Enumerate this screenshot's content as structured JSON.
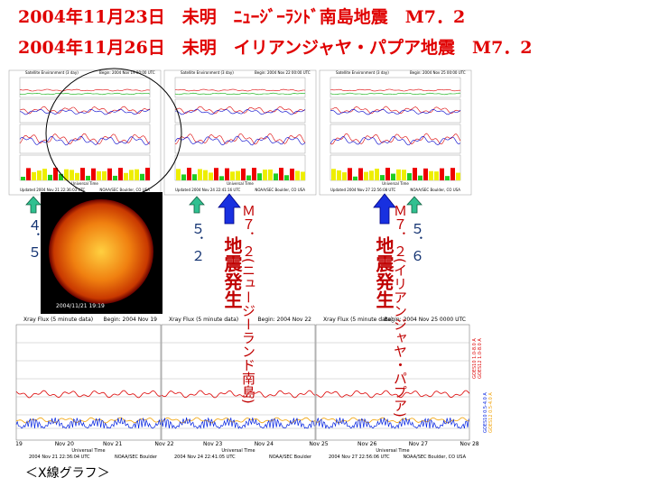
{
  "header": {
    "lines": [
      "2004年11月23日　未明　ﾆｭｰｼﾞｰﾗﾝﾄﾞ南島地震　M7．2",
      "2004年11月26日　未明　イリアンジャヤ・パプア地震　M7．2"
    ]
  },
  "satellite_panels": [
    {
      "title": "Satellite Environment (3 day)",
      "begin": "Begin: 2004 Nov 19 00:00 UTC",
      "x_label": "Universal Time",
      "updated": "Updated 2004 Nov 21 22:36:03 UTC",
      "source": "NOAA/SEC Boulder, CO USA"
    },
    {
      "title": "Satellite Environment (3 day)",
      "begin": "Begin: 2004 Nov 22 00:00 UTC",
      "x_label": "Universal Time",
      "updated": "Updated 2004 Nov 24 22:41:16 UTC",
      "source": "NOAA/SEC Boulder, CO USA"
    },
    {
      "title": "Satellite Environment (3 day)",
      "begin": "Begin: 2004 Nov 25 00:00 UTC",
      "x_label": "Universal Time",
      "updated": "Updated 2004 Nov 27 22:56:08 UTC",
      "source": "NOAA/SEC Boulder, CO USA"
    }
  ],
  "sun_image": {
    "timestamp": "2004/11/21 19:19"
  },
  "xray_panels": [
    {
      "title": "Xray Flux (5 minute data)",
      "begin": "Begin: 2004 Nov 19",
      "dates": [
        "19",
        "Nov 20",
        "Nov 21"
      ],
      "x_label": "Universal Time",
      "updated": "2004 Nov 21 22:36:04 UTC",
      "source": "NOAA/SEC Boulder"
    },
    {
      "title": "Xray Flux (5 minute data)",
      "begin": "Begin: 2004 Nov 22",
      "dates": [
        "Nov 22",
        "Nov 23",
        "Nov 24"
      ],
      "x_label": "Universal Time",
      "updated": "2004 Nov 24 22:41:05 UTC",
      "source": "NOAA/SEC Boulder"
    },
    {
      "title": "Xray Flux (5 minute data)",
      "begin": "Begin: 2004 Nov 25 0000 UTC",
      "dates": [
        "Nov 25",
        "Nov 26",
        "Nov 27",
        "Nov 28"
      ],
      "x_label": "Universal Time",
      "updated": "2004 Nov 27 22:56:06 UTC",
      "source": "NOAA/SEC Boulder, CO USA"
    }
  ],
  "xray_legend": [
    "GOES10 1.0-8.0 A",
    "GOES12 1.0-8.0 A",
    "GOES10 0.5-4.0 A",
    "GOES12 0.5-4.0 A"
  ],
  "annotations": {
    "green_labels": [
      "４．５",
      "５．２",
      "５．６"
    ],
    "quakes": [
      {
        "magnitude": "Ｍ７．２(ニュージーランド南島)",
        "event": "地震発生"
      },
      {
        "magnitude": "Ｍ７．２(イリアンジャヤ・パプア)",
        "event": "地震発生"
      }
    ]
  },
  "caption": "＜X線グラフ＞"
}
